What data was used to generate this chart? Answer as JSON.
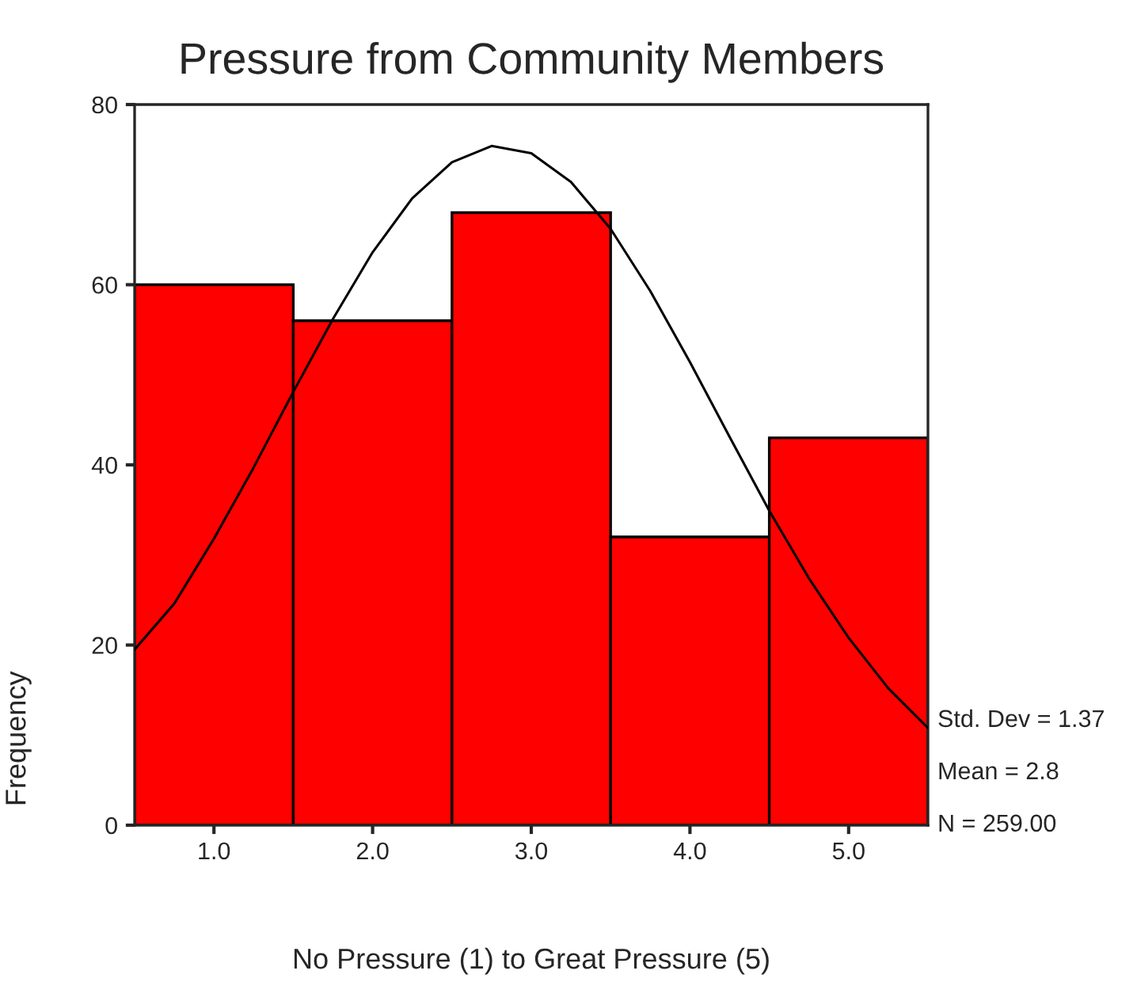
{
  "chart_data": {
    "type": "histogram",
    "title": "Pressure from Community Members",
    "xlabel": "No Pressure (1) to Great Pressure (5)",
    "ylabel": "Frequency",
    "bins": [
      0.5,
      1.5,
      2.5,
      3.5,
      4.5,
      5.5
    ],
    "values": [
      60,
      56,
      68,
      32,
      43
    ],
    "color": "#ff0000",
    "series": [
      {
        "type": "line",
        "color": "#000000",
        "x": [
          0.5,
          0.75,
          1.0,
          1.25,
          1.5,
          1.75,
          2.0,
          2.25,
          2.5,
          2.75,
          3.0,
          3.25,
          3.5,
          3.75,
          4.0,
          4.25,
          4.5,
          4.75,
          5.0,
          5.25,
          5.5
        ],
        "values": [
          19.5,
          24.6,
          31.8,
          39.7,
          48.1,
          56.2,
          63.6,
          69.6,
          73.6,
          75.4,
          74.6,
          71.4,
          66.2,
          59.3,
          51.4,
          43.1,
          34.9,
          27.4,
          20.8,
          15.2,
          10.8
        ]
      }
    ],
    "xlim": [
      0.5,
      5.5
    ],
    "xticks": [
      {
        "value": 1,
        "label": "1.0"
      },
      {
        "value": 2,
        "label": "2.0"
      },
      {
        "value": 3,
        "label": "3.0"
      },
      {
        "value": 4,
        "label": "4.0"
      },
      {
        "value": 5,
        "label": "5.0"
      }
    ],
    "ylim": [
      0,
      80
    ],
    "yticks": [
      0,
      20,
      40,
      60,
      80
    ],
    "annotations": [
      "Std. Dev = 1.37",
      "Mean = 2.8",
      "N = 259.00"
    ],
    "grid": false,
    "legend": false
  }
}
